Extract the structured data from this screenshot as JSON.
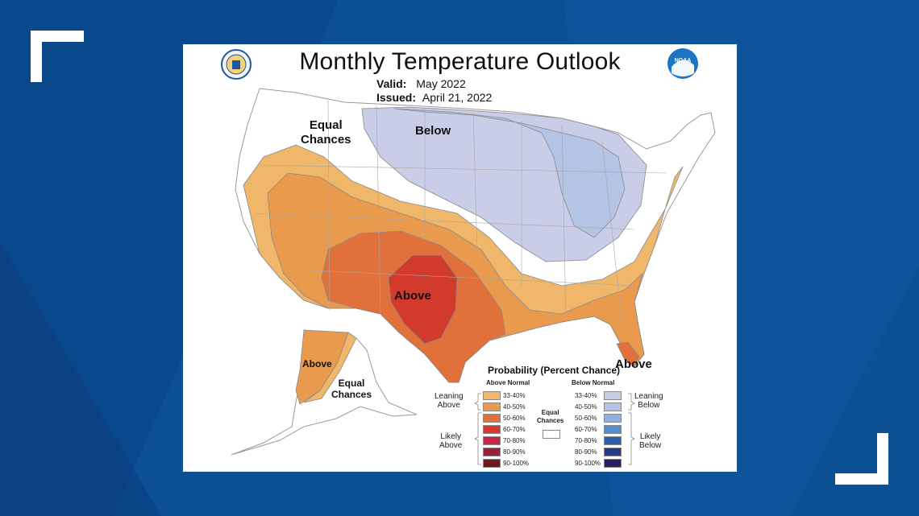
{
  "map": {
    "title": "Monthly Temperature Outlook",
    "valid_label": "Valid:",
    "valid_value": "May 2022",
    "issued_label": "Issued:",
    "issued_value": "April 21, 2022",
    "logo_text": "NOAA"
  },
  "regions": {
    "equal_chances_north_line1": "Equal",
    "equal_chances_north_line2": "Chances",
    "below": "Below",
    "above_south": "Above",
    "above_florida": "Above",
    "above_alaska": "Above",
    "equal_chances_alaska_line1": "Equal",
    "equal_chances_alaska_line2": "Chances"
  },
  "legend": {
    "title": "Probability (Percent Chance)",
    "above_header": "Above Normal",
    "below_header": "Below Normal",
    "leaning_above_1": "Leaning",
    "leaning_above_2": "Above",
    "likely_above_1": "Likely",
    "likely_above_2": "Above",
    "leaning_below_1": "Leaning",
    "leaning_below_2": "Below",
    "likely_below_1": "Likely",
    "likely_below_2": "Below",
    "equal_1": "Equal",
    "equal_2": "Chances",
    "above_items": [
      {
        "label": "33-40%",
        "color": "#f0b76a"
      },
      {
        "label": "40-50%",
        "color": "#ea9a4c"
      },
      {
        "label": "50-60%",
        "color": "#e2703a"
      },
      {
        "label": "60-70%",
        "color": "#d23a2c"
      },
      {
        "label": "70-80%",
        "color": "#c7264b"
      },
      {
        "label": "80-90%",
        "color": "#9a1f3a"
      },
      {
        "label": "90-100%",
        "color": "#6e1a1a"
      }
    ],
    "below_items": [
      {
        "label": "33-40%",
        "color": "#c9cde8"
      },
      {
        "label": "40-50%",
        "color": "#b4c4e4"
      },
      {
        "label": "50-60%",
        "color": "#8fb0dd"
      },
      {
        "label": "60-70%",
        "color": "#4f8fd0"
      },
      {
        "label": "70-80%",
        "color": "#2a5fa8"
      },
      {
        "label": "80-90%",
        "color": "#233a8a"
      },
      {
        "label": "90-100%",
        "color": "#2a2060"
      }
    ],
    "equal_color": "#ffffff"
  }
}
